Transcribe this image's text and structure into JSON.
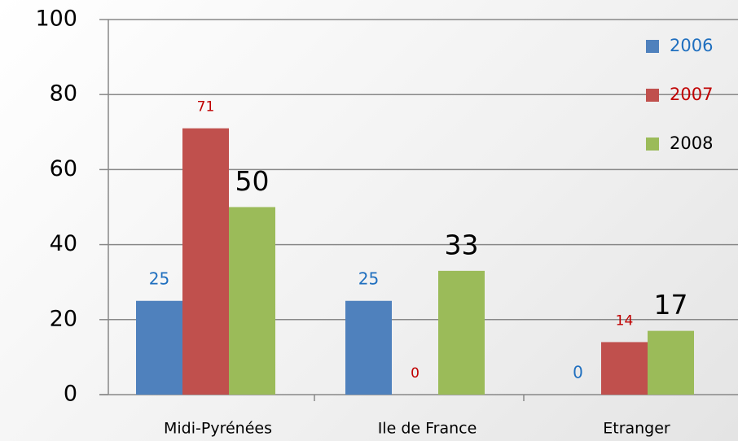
{
  "chart_data": {
    "type": "bar",
    "categories": [
      "Midi-Pyrénées",
      "Ile de France",
      "Etranger"
    ],
    "series": [
      {
        "name": "2006",
        "color": "#4f81bd",
        "values": [
          25,
          25,
          0
        ]
      },
      {
        "name": "2007",
        "color": "#c0504d",
        "values": [
          71,
          0,
          14
        ]
      },
      {
        "name": "2008",
        "color": "#9bbb59",
        "values": [
          50,
          33,
          17
        ]
      }
    ],
    "ylim": [
      0,
      100
    ],
    "yticks": [
      0,
      20,
      40,
      60,
      80,
      100
    ],
    "grid": true,
    "legend": "top-right"
  }
}
